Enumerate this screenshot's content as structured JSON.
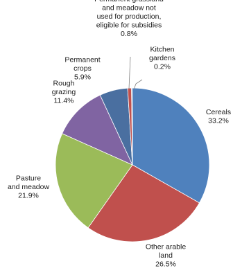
{
  "chart_data": {
    "type": "pie",
    "title": "",
    "start": "12 o'clock",
    "direction": "clockwise",
    "slices": [
      {
        "label": [
          "Cereals"
        ],
        "value_label": "33.2%",
        "value": 33.2,
        "color": "#4F81BD"
      },
      {
        "label": [
          "Other arable",
          "land"
        ],
        "value_label": "26.5%",
        "value": 26.5,
        "color": "#C0504D"
      },
      {
        "label": [
          "Pasture",
          "and meadow"
        ],
        "value_label": "21.9%",
        "value": 21.9,
        "color": "#9BBB59"
      },
      {
        "label": [
          "Rough",
          "grazing"
        ],
        "value_label": "11.4%",
        "value": 11.4,
        "color": "#8064A2"
      },
      {
        "label": [
          "Permanent",
          "crops"
        ],
        "value_label": "5.9%",
        "value": 5.9,
        "color": "#4A6FA0"
      },
      {
        "label": [
          "Permanent grassland",
          "and meadow not",
          "used for production,",
          "eligible for subsidies"
        ],
        "value_label": "0.8%",
        "value": 0.8,
        "color": "#C0504D"
      },
      {
        "label": [
          "Kitchen",
          "gardens"
        ],
        "value_label": "0.2%",
        "value": 0.2,
        "color": "#4F81BD"
      }
    ]
  }
}
